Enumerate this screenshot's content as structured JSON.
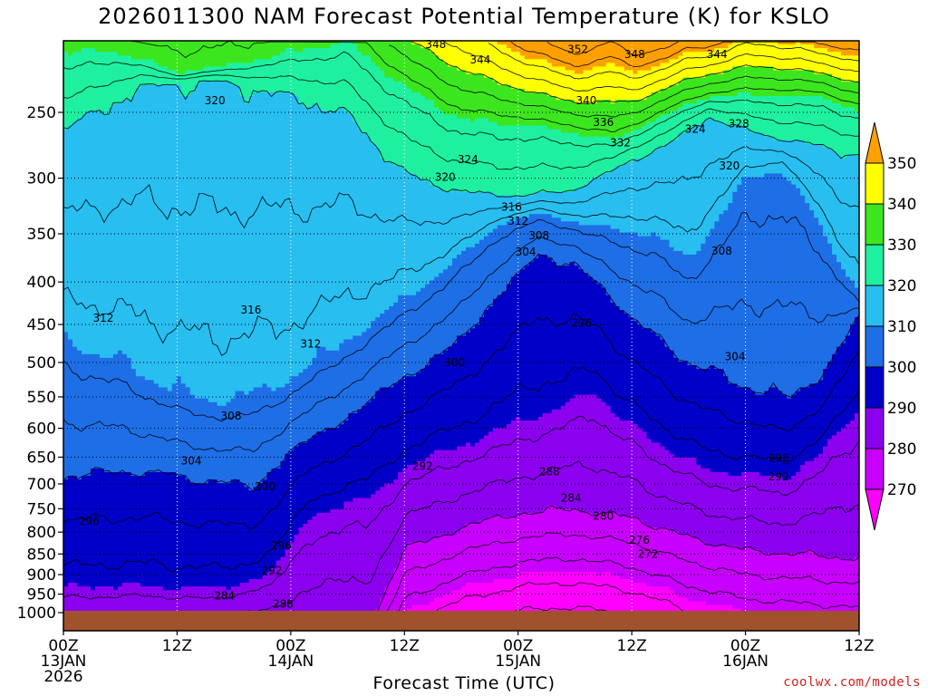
{
  "chart_data": {
    "type": "heatmap",
    "title": "2026011300 NAM Forecast Potential Temperature (K) for KSLO",
    "xlabel": "Forecast Time (UTC)",
    "y_ticks": [
      "250",
      "300",
      "350",
      "400",
      "450",
      "500",
      "550",
      "600",
      "650",
      "700",
      "750",
      "800",
      "850",
      "900",
      "950",
      "1000"
    ],
    "y_values": [
      250,
      300,
      350,
      400,
      450,
      500,
      550,
      600,
      650,
      700,
      750,
      800,
      850,
      900,
      950,
      1000
    ],
    "ylim": [
      200,
      1050
    ],
    "y_scale": "log",
    "x_hours": [
      0,
      12,
      24,
      36,
      48,
      60,
      72,
      84
    ],
    "x_ticks": [
      {
        "line1": "00Z",
        "line2": "13JAN",
        "line3": "2026"
      },
      {
        "line1": "12Z",
        "line2": "",
        "line3": ""
      },
      {
        "line1": "00Z",
        "line2": "14JAN",
        "line3": ""
      },
      {
        "line1": "12Z",
        "line2": "",
        "line3": ""
      },
      {
        "line1": "00Z",
        "line2": "15JAN",
        "line3": ""
      },
      {
        "line1": "12Z",
        "line2": "",
        "line3": ""
      },
      {
        "line1": "00Z",
        "line2": "16JAN",
        "line3": ""
      },
      {
        "line1": "12Z",
        "line2": "",
        "line3": ""
      }
    ],
    "xlim": [
      0,
      84
    ],
    "colorbar": {
      "labels": [
        "350",
        "340",
        "330",
        "320",
        "310",
        "300",
        "290",
        "280",
        "270"
      ],
      "levels": [
        270,
        280,
        290,
        300,
        310,
        320,
        330,
        340,
        350
      ],
      "colors": [
        "#ff00ff",
        "#c800ff",
        "#8c00f0",
        "#0000c8",
        "#1e6ee6",
        "#28bef0",
        "#1ef0a0",
        "#3ce61e",
        "#ffff00",
        "#ffa000"
      ]
    },
    "grid": true,
    "contour_labels": [
      {
        "text": "348",
        "x": 39.3,
        "p": 207
      },
      {
        "text": "344",
        "x": 44,
        "p": 216
      },
      {
        "text": "352",
        "x": 54.3,
        "p": 210
      },
      {
        "text": "348",
        "x": 60.3,
        "p": 213
      },
      {
        "text": "344",
        "x": 69,
        "p": 213
      },
      {
        "text": "320",
        "x": 16,
        "p": 242
      },
      {
        "text": "340",
        "x": 55.2,
        "p": 242
      },
      {
        "text": "336",
        "x": 57,
        "p": 257
      },
      {
        "text": "324",
        "x": 66.7,
        "p": 262
      },
      {
        "text": "328",
        "x": 71.3,
        "p": 258
      },
      {
        "text": "332",
        "x": 58.8,
        "p": 272
      },
      {
        "text": "324",
        "x": 42.7,
        "p": 285
      },
      {
        "text": "320",
        "x": 40.3,
        "p": 299
      },
      {
        "text": "320",
        "x": 70.3,
        "p": 290
      },
      {
        "text": "316",
        "x": 47.3,
        "p": 325
      },
      {
        "text": "312",
        "x": 48,
        "p": 338
      },
      {
        "text": "308",
        "x": 50.2,
        "p": 352
      },
      {
        "text": "304",
        "x": 48.8,
        "p": 368
      },
      {
        "text": "308",
        "x": 69.5,
        "p": 367
      },
      {
        "text": "316",
        "x": 19.8,
        "p": 432
      },
      {
        "text": "312",
        "x": 4.2,
        "p": 442
      },
      {
        "text": "296",
        "x": 54.7,
        "p": 448
      },
      {
        "text": "312",
        "x": 26.1,
        "p": 475
      },
      {
        "text": "300",
        "x": 41.3,
        "p": 500
      },
      {
        "text": "304",
        "x": 70.9,
        "p": 492
      },
      {
        "text": "308",
        "x": 17.7,
        "p": 580
      },
      {
        "text": "304",
        "x": 13.5,
        "p": 657
      },
      {
        "text": "296",
        "x": 75.5,
        "p": 652
      },
      {
        "text": "292",
        "x": 37.9,
        "p": 667
      },
      {
        "text": "288",
        "x": 51.3,
        "p": 677
      },
      {
        "text": "292",
        "x": 75.5,
        "p": 686
      },
      {
        "text": "300",
        "x": 21.3,
        "p": 705
      },
      {
        "text": "284",
        "x": 53.6,
        "p": 728
      },
      {
        "text": "296",
        "x": 2.7,
        "p": 776
      },
      {
        "text": "280",
        "x": 57,
        "p": 765
      },
      {
        "text": "276",
        "x": 60.8,
        "p": 818
      },
      {
        "text": "296",
        "x": 23,
        "p": 830
      },
      {
        "text": "272",
        "x": 61.7,
        "p": 850
      },
      {
        "text": "292",
        "x": 22,
        "p": 890
      },
      {
        "text": "284",
        "x": 17,
        "p": 955
      },
      {
        "text": "288",
        "x": 23.2,
        "p": 977
      }
    ]
  },
  "credit": "coolwx.com/models"
}
